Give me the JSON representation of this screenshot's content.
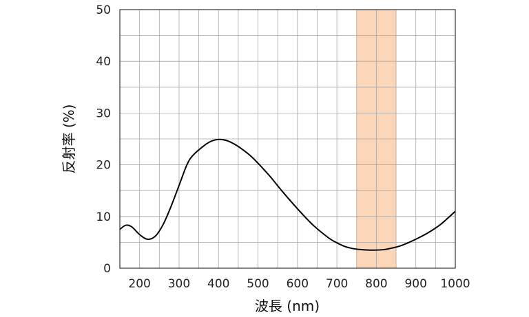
{
  "chart_data": {
    "type": "line",
    "title": "",
    "xlabel": "波長 (nm)",
    "ylabel": "反射率 (%)",
    "xlim": [
      150,
      1000
    ],
    "ylim": [
      0,
      50
    ],
    "x_ticks": [
      200,
      300,
      400,
      500,
      600,
      700,
      800,
      900,
      1000
    ],
    "y_ticks": [
      0,
      10,
      20,
      30,
      40,
      50
    ],
    "x_grid_minor": [
      250,
      350,
      450,
      550,
      650,
      750,
      850,
      950
    ],
    "y_grid_minor": [
      5,
      15,
      25,
      35,
      45
    ],
    "grid": true,
    "highlight_band": {
      "x_range": [
        750,
        850
      ],
      "color": "#fbd6b8"
    },
    "series": [
      {
        "name": "反射率",
        "color": "#000000",
        "x": [
          150,
          165,
          180,
          200,
          220,
          240,
          260,
          280,
          300,
          320,
          335,
          360,
          380,
          400,
          420,
          440,
          460,
          480,
          500,
          530,
          560,
          600,
          640,
          680,
          700,
          720,
          740,
          760,
          780,
          800,
          820,
          840,
          860,
          880,
          900,
          930,
          960,
          980,
          1000
        ],
        "y": [
          7.5,
          8.3,
          8.0,
          6.5,
          5.6,
          6.2,
          8.5,
          12.0,
          16.0,
          20.0,
          21.8,
          23.5,
          24.5,
          24.9,
          24.7,
          24.0,
          23.0,
          21.8,
          20.3,
          17.8,
          15.0,
          11.5,
          8.3,
          5.8,
          4.9,
          4.2,
          3.8,
          3.6,
          3.5,
          3.5,
          3.6,
          3.9,
          4.3,
          4.9,
          5.6,
          6.8,
          8.3,
          9.6,
          11.0
        ]
      }
    ]
  }
}
